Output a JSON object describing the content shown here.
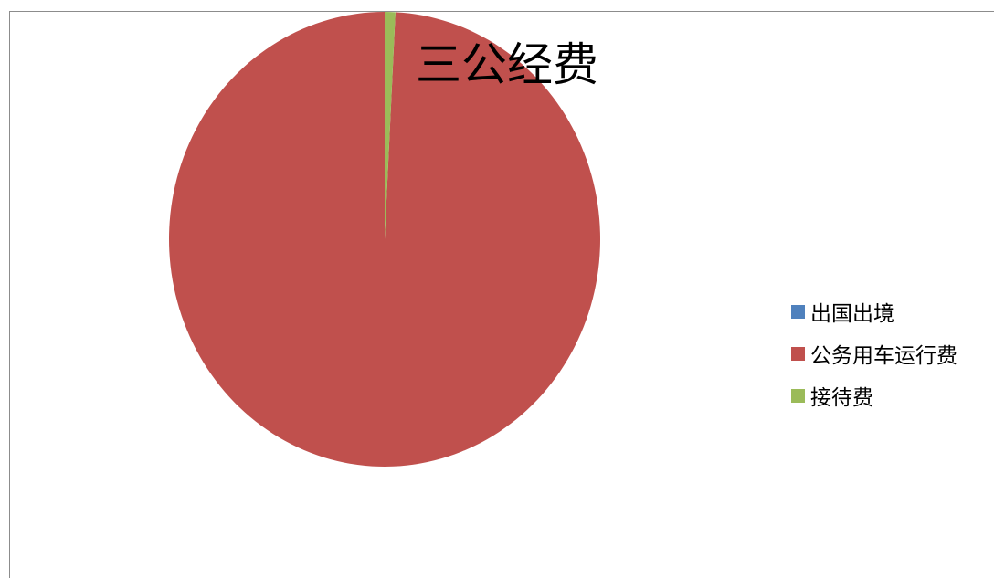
{
  "chart_data": {
    "type": "pie",
    "title": "三公经费",
    "categories": [
      "出国出境",
      "公务用车运行费",
      "接待费"
    ],
    "values": [
      0,
      99.2,
      0.8
    ],
    "colors": [
      "#4F81BD",
      "#C0504D",
      "#9BBB59"
    ],
    "legend_position": "right"
  }
}
